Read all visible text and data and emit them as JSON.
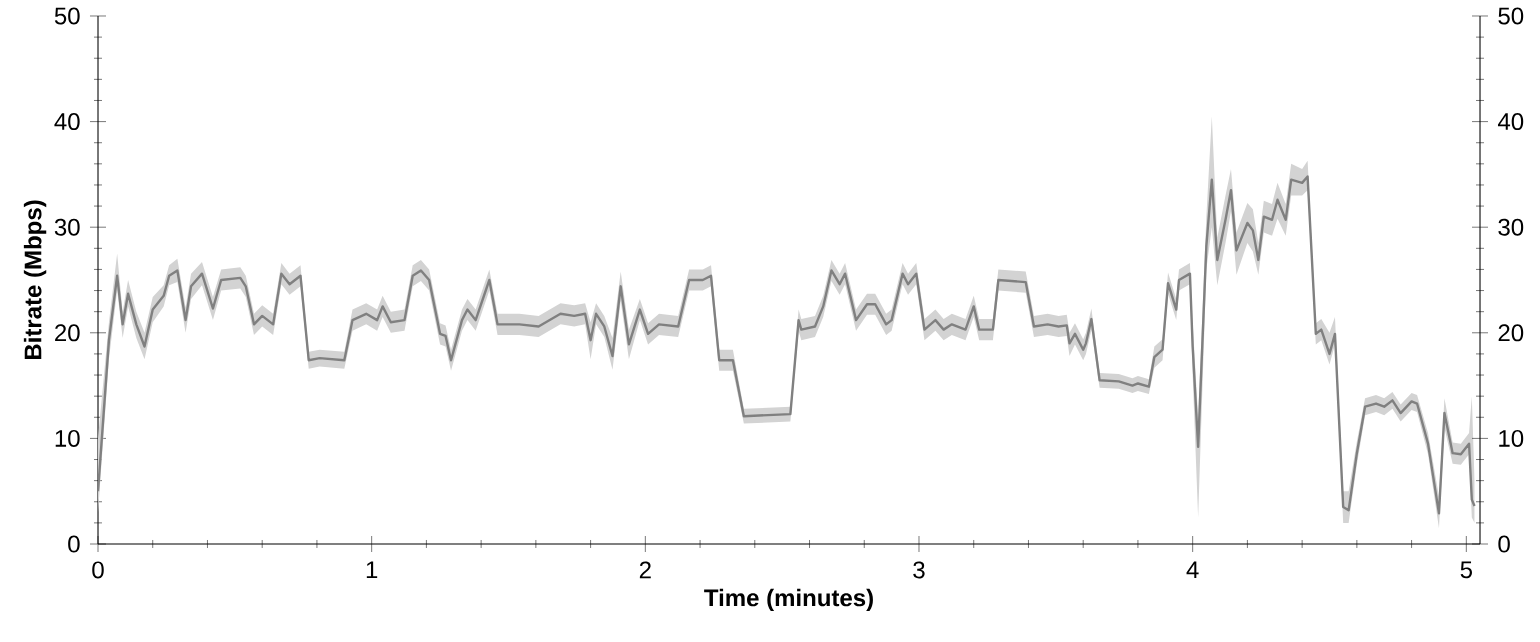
{
  "chart_data": {
    "type": "line",
    "xlabel": "Time (minutes)",
    "ylabel": "Bitrate (Mbps)",
    "xlim": [
      0,
      5.05
    ],
    "xticks": [
      0,
      1,
      2,
      3,
      4,
      5
    ],
    "ylim": [
      0,
      50
    ],
    "yticks": [
      0,
      10,
      20,
      30,
      40,
      50
    ],
    "y2lim": [
      0,
      50
    ],
    "y2ticks": [
      0,
      10,
      20,
      30,
      40,
      50
    ],
    "line_style": "solid",
    "marker": "none",
    "grid": false,
    "series": [
      {
        "color": "#808080",
        "x": [
          0,
          0.04,
          0.07,
          0.09,
          0.11,
          0.14,
          0.17,
          0.2,
          0.24,
          0.26,
          0.29,
          0.32,
          0.34,
          0.38,
          0.42,
          0.45,
          0.52,
          0.54,
          0.57,
          0.6,
          0.64,
          0.67,
          0.7,
          0.74,
          0.77,
          0.81,
          0.9,
          0.93,
          0.98,
          1.02,
          1.04,
          1.07,
          1.12,
          1.15,
          1.18,
          1.21,
          1.25,
          1.27,
          1.29,
          1.33,
          1.35,
          1.38,
          1.43,
          1.46,
          1.54,
          1.61,
          1.69,
          1.74,
          1.78,
          1.8,
          1.82,
          1.85,
          1.88,
          1.91,
          1.94,
          1.98,
          2.01,
          2.05,
          2.12,
          2.16,
          2.21,
          2.24,
          2.27,
          2.32,
          2.36,
          2.53,
          2.56,
          2.57,
          2.62,
          2.65,
          2.68,
          2.71,
          2.73,
          2.77,
          2.81,
          2.84,
          2.88,
          2.9,
          2.94,
          2.96,
          2.99,
          3.02,
          3.06,
          3.09,
          3.12,
          3.17,
          3.2,
          3.22,
          3.27,
          3.29,
          3.39,
          3.42,
          3.47,
          3.51,
          3.54,
          3.55,
          3.57,
          3.6,
          3.61,
          3.63,
          3.66,
          3.73,
          3.78,
          3.8,
          3.84,
          3.86,
          3.89,
          3.91,
          3.94,
          3.95,
          3.99,
          4,
          4.02,
          4.05,
          4.07,
          4.09,
          4.12,
          4.14,
          4.16,
          4.2,
          4.22,
          4.24,
          4.26,
          4.29,
          4.31,
          4.34,
          4.36,
          4.4,
          4.42,
          4.45,
          4.47,
          4.5,
          4.52,
          4.55,
          4.57,
          4.6,
          4.63,
          4.67,
          4.7,
          4.73,
          4.76,
          4.8,
          4.82,
          4.86,
          4.9,
          4.92,
          4.95,
          4.98,
          5.01,
          5.02,
          5.03
        ],
        "values": [
          5,
          19.3,
          25.4,
          20.8,
          23.7,
          20.8,
          18.7,
          22.2,
          23.5,
          25.4,
          25.9,
          21.2,
          24.4,
          25.6,
          22.3,
          25,
          25.2,
          24.4,
          20.8,
          21.6,
          20.8,
          25.6,
          24.6,
          25.4,
          17.4,
          17.6,
          17.4,
          21.2,
          21.8,
          21.2,
          22.5,
          21,
          21.2,
          25.4,
          25.9,
          25,
          19.9,
          19.7,
          17.4,
          21.2,
          22.2,
          21.2,
          25,
          20.8,
          20.8,
          20.6,
          21.8,
          21.6,
          21.8,
          19.3,
          21.8,
          20.6,
          17.8,
          24.4,
          18.9,
          22.2,
          19.9,
          20.8,
          20.6,
          25,
          25,
          25.4,
          17.4,
          17.4,
          12.1,
          12.3,
          21.2,
          20.3,
          20.6,
          22.5,
          25.9,
          24.6,
          25.6,
          21.2,
          22.7,
          22.7,
          20.8,
          21.2,
          25.6,
          24.6,
          25.6,
          20.3,
          21.2,
          20.3,
          20.8,
          20.3,
          22.5,
          20.3,
          20.3,
          25,
          24.8,
          20.6,
          20.8,
          20.6,
          20.7,
          19,
          19.9,
          18.4,
          19,
          21.3,
          15.5,
          15.4,
          15,
          15.2,
          14.9,
          17.7,
          18.4,
          24.7,
          22.2,
          25,
          25.6,
          18.7,
          9.2,
          28.2,
          34.5,
          26.9,
          30.7,
          33.5,
          27.8,
          30.4,
          29.7,
          26.9,
          31,
          30.7,
          32.6,
          30.7,
          34.5,
          34.2,
          34.8,
          19.9,
          20.3,
          18,
          19.9,
          3.5,
          3.2,
          8.6,
          13,
          13.3,
          13,
          13.6,
          12.4,
          13.5,
          13.3,
          9.5,
          2.9,
          12.4,
          8.6,
          8.5,
          9.5,
          4.2,
          3.6
        ],
        "lower": [
          3,
          17.5,
          24,
          19.5,
          22.5,
          19.5,
          17.5,
          21,
          22.5,
          24.5,
          24.8,
          20,
          23.2,
          24.5,
          21.2,
          24,
          24.2,
          23.4,
          19.8,
          20.6,
          19.8,
          24.6,
          23.6,
          24.4,
          16.6,
          16.8,
          16.6,
          20.2,
          20.8,
          20.2,
          21.5,
          20,
          20.2,
          24.4,
          24.9,
          24,
          18.9,
          18.7,
          16.4,
          20.2,
          21.2,
          20.2,
          24,
          19.8,
          19.8,
          19.6,
          20.8,
          20.6,
          20.8,
          17.5,
          20.8,
          19.6,
          16.5,
          23,
          17.5,
          21.2,
          18.9,
          19.8,
          19.6,
          24,
          24,
          24.4,
          16.4,
          16.4,
          11.4,
          11.6,
          20.2,
          19.3,
          19.6,
          21.5,
          24.9,
          23.6,
          24.6,
          20.2,
          21.7,
          21.7,
          19.8,
          20.2,
          24.6,
          23.6,
          24.6,
          19.3,
          20.2,
          19.3,
          19.8,
          19.3,
          21.5,
          19.3,
          19.3,
          24,
          23.8,
          19.6,
          19.8,
          19.6,
          19.7,
          17.8,
          18.9,
          17.4,
          18,
          20.3,
          14.8,
          14.7,
          14.3,
          14.5,
          14.2,
          16.7,
          17.4,
          23.7,
          21.2,
          24,
          24.6,
          16,
          2.5,
          26,
          30,
          24.5,
          28.5,
          31.5,
          25.5,
          28.5,
          27.7,
          25.5,
          29.5,
          29.2,
          30.8,
          29.2,
          33,
          33,
          33.5,
          18.9,
          19.3,
          17,
          18.9,
          2,
          2,
          7.5,
          12.2,
          12.5,
          12.2,
          12.8,
          11.6,
          12.7,
          12.5,
          8.5,
          1.5,
          11,
          7.6,
          7.5,
          8.5,
          2.5,
          2
        ],
        "upper": [
          10,
          21,
          27.5,
          22,
          25,
          22,
          20,
          23.4,
          24.5,
          26.4,
          27,
          22.4,
          25.6,
          26.7,
          23.4,
          26,
          26.2,
          25.4,
          21.8,
          22.6,
          21.8,
          26.6,
          25.6,
          26.4,
          18.2,
          18.4,
          18.2,
          22.2,
          22.8,
          22.2,
          23.5,
          22,
          22.2,
          26.4,
          26.9,
          26,
          20.9,
          20.7,
          18.4,
          22.2,
          23.2,
          22.2,
          26,
          21.8,
          21.8,
          21.6,
          22.8,
          22.6,
          22.8,
          21,
          22.8,
          21.6,
          19.5,
          25.8,
          20.3,
          23.2,
          20.9,
          21.8,
          21.6,
          26,
          26,
          26.4,
          18.4,
          18.4,
          12.8,
          13,
          22.2,
          21.3,
          21.6,
          23.5,
          26.9,
          25.6,
          26.6,
          22.2,
          23.7,
          23.7,
          21.8,
          22.2,
          26.6,
          25.6,
          26.6,
          21.3,
          22.2,
          21.3,
          21.8,
          21.3,
          23.5,
          21.3,
          21.3,
          26,
          25.8,
          21.6,
          21.8,
          21.6,
          21.7,
          20,
          20.9,
          19.4,
          20,
          22.3,
          16.2,
          16.1,
          15.7,
          15.9,
          15.6,
          18.7,
          19.4,
          25.7,
          23.2,
          26,
          26.6,
          21,
          12,
          31,
          40.5,
          29,
          33,
          35.5,
          29.5,
          32.3,
          31.7,
          28.5,
          32.5,
          32.2,
          34.2,
          32.2,
          36,
          35.5,
          36.3,
          20.9,
          21.3,
          20,
          21.5,
          5,
          5,
          9.7,
          13.8,
          14.1,
          13.8,
          14.4,
          13.2,
          14.3,
          14.1,
          10.5,
          4.5,
          13.8,
          9.6,
          9.5,
          10.5,
          14,
          6
        ]
      }
    ]
  }
}
